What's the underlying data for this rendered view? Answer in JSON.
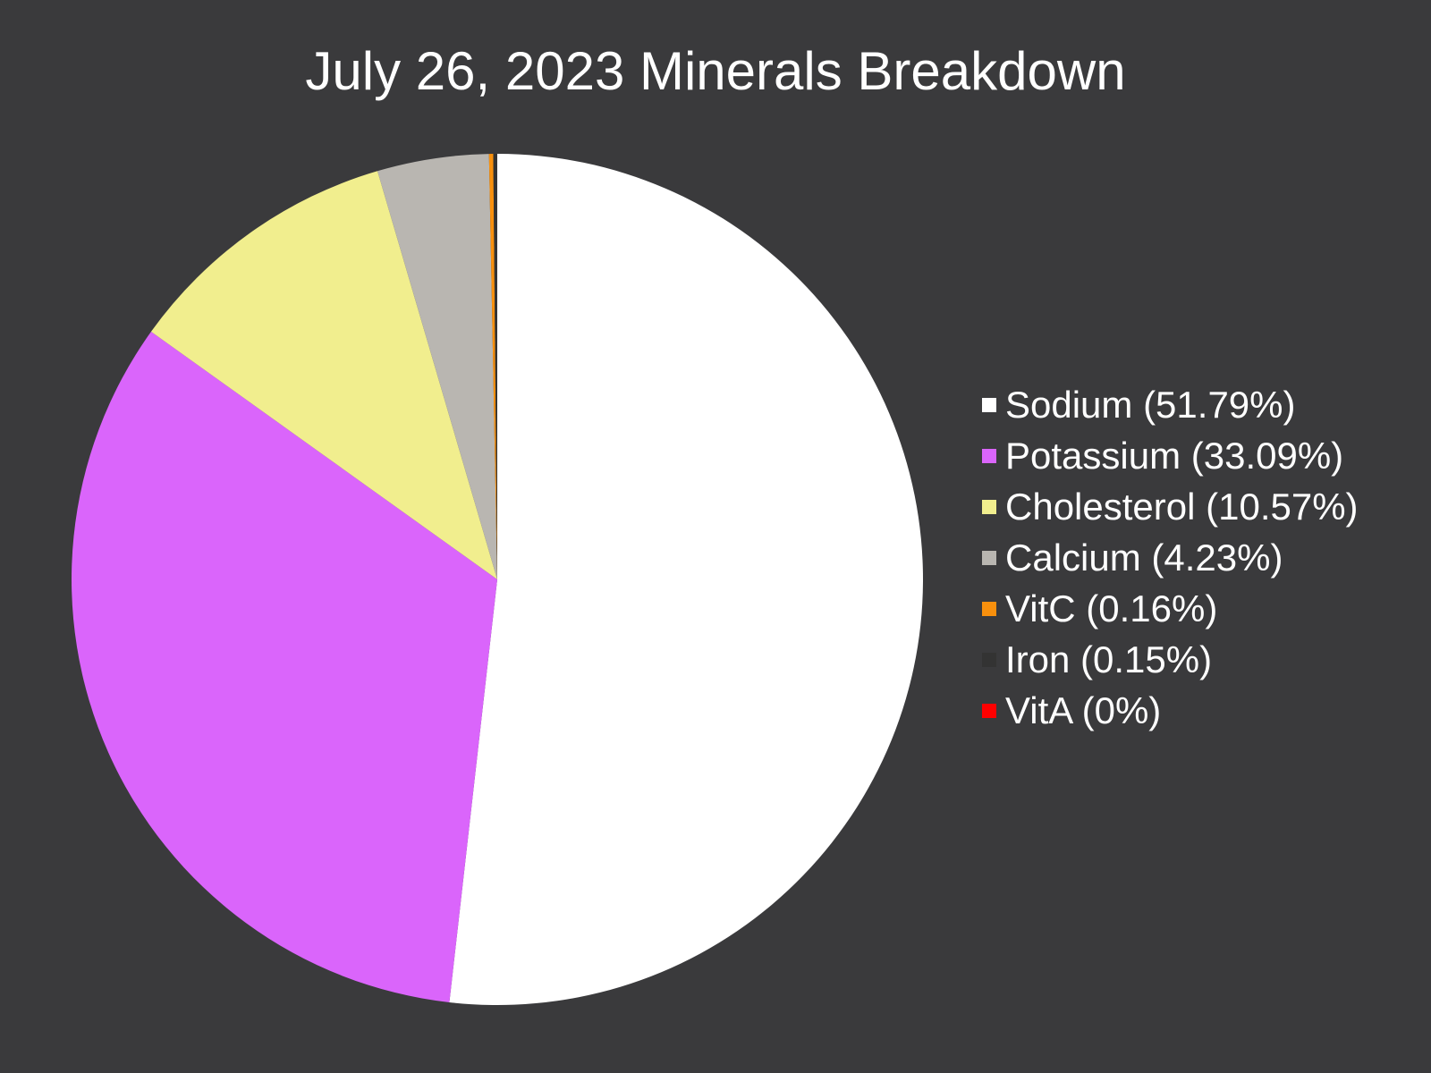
{
  "chart_data": {
    "type": "pie",
    "title": "July 26, 2023 Minerals Breakdown",
    "start_angle_deg": 0,
    "direction": "clockwise",
    "legend_position": "right",
    "slices": [
      {
        "label": "Sodium",
        "percent_label": "51.79%",
        "value": 51.79,
        "color": "#ffffff"
      },
      {
        "label": "Potassium",
        "percent_label": "33.09%",
        "value": 33.09,
        "color": "#da65fb"
      },
      {
        "label": "Cholesterol",
        "percent_label": "10.57%",
        "value": 10.57,
        "color": "#f1ee8e"
      },
      {
        "label": "Calcium",
        "percent_label": "4.23%",
        "value": 4.23,
        "color": "#b9b6b1"
      },
      {
        "label": "VitC",
        "percent_label": "0.16%",
        "value": 0.16,
        "color": "#f8900d"
      },
      {
        "label": "Iron",
        "percent_label": "0.15%",
        "value": 0.15,
        "color": "#333333"
      },
      {
        "label": "VitA",
        "percent_label": "0%",
        "value": 0,
        "color": "#ff0000"
      }
    ]
  },
  "background_color": "#3a3a3c"
}
